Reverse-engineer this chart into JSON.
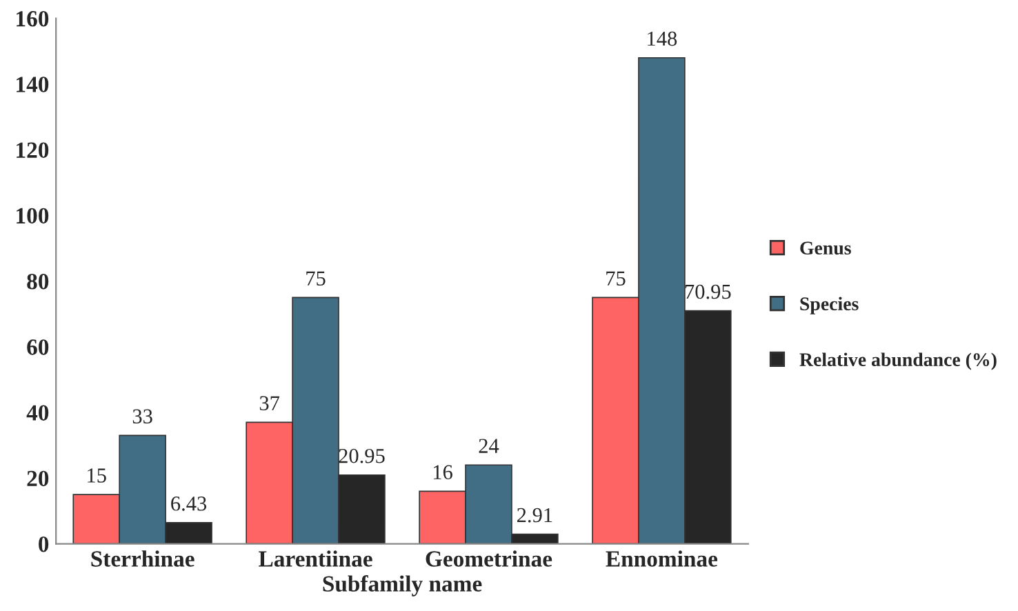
{
  "chart_data": {
    "type": "bar",
    "xlabel": "Subfamily name",
    "categories": [
      "Sterrhinae",
      "Larentiinae",
      "Geometrinae",
      "Ennominae"
    ],
    "series": [
      {
        "name": "Genus",
        "color": "#fe6464",
        "values": [
          15,
          37,
          16,
          75
        ]
      },
      {
        "name": "Species",
        "color": "#416e84",
        "values": [
          33,
          75,
          24,
          148
        ]
      },
      {
        "name": "Relative abundance (%)",
        "color": "#262626",
        "values": [
          6.43,
          20.95,
          2.91,
          70.95
        ]
      }
    ],
    "ylim": [
      0,
      160
    ],
    "yticks": [
      0,
      20,
      40,
      60,
      80,
      100,
      120,
      140,
      160
    ],
    "data_labels": true,
    "grid": false,
    "legend": "right"
  }
}
